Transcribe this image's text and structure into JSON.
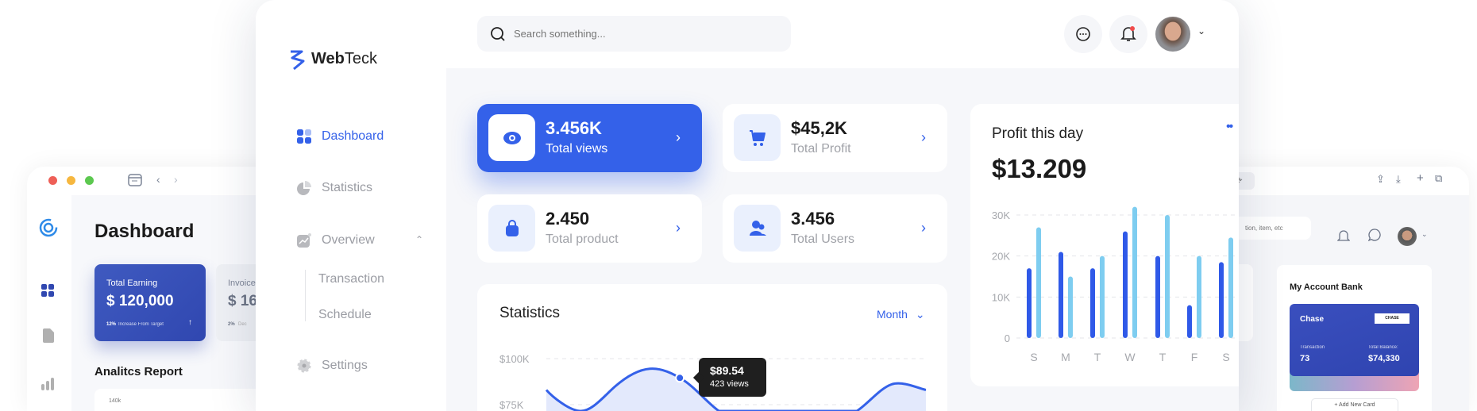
{
  "colors": {
    "accent": "#3461e9",
    "bar_dark": "#2f59e8",
    "bar_light": "#7ecdf0",
    "earning_card": "#3047b0"
  },
  "back_left": {
    "title": "Dashboard",
    "earning": {
      "label": "Total Earning",
      "value": "$ 120,000",
      "pct": "12%",
      "note": "Increase From Target"
    },
    "invoice": {
      "label": "Invoice",
      "value": "$ 16",
      "pct": "2%",
      "note": "Dec"
    },
    "report_title": "Analitcs Report",
    "axis_top": "140k"
  },
  "back_right": {
    "search_placeholder": "tion, item, etc",
    "bank": {
      "title": "My Account Bank",
      "card_name": "Chase",
      "card_logo": "CHASE",
      "transaction_label": "Transaction",
      "transaction_value": "73",
      "balance_label": "Total Balance:",
      "balance_value": "$74,330",
      "add_button": "+ Add New Card"
    }
  },
  "brand": {
    "name_bold": "Web",
    "name_light": "Teck"
  },
  "sidebar": {
    "items": [
      {
        "label": "Dashboard",
        "icon": "grid-icon",
        "active": true
      },
      {
        "label": "Statistics",
        "icon": "pie-chart-icon"
      },
      {
        "label": "Overview",
        "icon": "chart-icon",
        "expanded": true,
        "children": [
          "Transaction",
          "Schedule"
        ]
      },
      {
        "label": "Settings",
        "icon": "gear-icon"
      }
    ]
  },
  "header": {
    "search_placeholder": "Search something...",
    "notification_badge": true
  },
  "stats": [
    {
      "value": "3.456K",
      "label": "Total views",
      "icon": "eye-icon"
    },
    {
      "value": "$45,2K",
      "label": "Total Profit",
      "icon": "cart-icon"
    },
    {
      "value": "2.450",
      "label": "Total product",
      "icon": "bag-icon"
    },
    {
      "value": "3.456",
      "label": "Total Users",
      "icon": "users-icon"
    }
  ],
  "profit": {
    "title": "Profit this day",
    "value": "$13.209"
  },
  "statistics": {
    "title": "Statistics",
    "period": "Month",
    "tooltip": {
      "value": "$89.54",
      "views": "423 views"
    }
  },
  "chart_data": [
    {
      "type": "bar",
      "title": "Profit this day",
      "categories": [
        "S",
        "M",
        "T",
        "W",
        "T",
        "F",
        "S"
      ],
      "series": [
        {
          "values": [
            17000,
            21000,
            17000,
            26000,
            20000,
            8000,
            18500
          ]
        },
        {
          "values": [
            27000,
            15000,
            20000,
            32000,
            30000,
            20000,
            24500
          ]
        }
      ],
      "yticks": [
        "0",
        "10K",
        "20K",
        "30K"
      ],
      "ylim": [
        0,
        30000
      ],
      "grid": true
    },
    {
      "type": "area",
      "title": "Statistics",
      "yticks": [
        "$100K",
        "$75K"
      ],
      "ylabel_unit": "$K",
      "values": [
        83,
        62,
        85,
        94.5,
        88,
        70,
        52,
        45,
        52,
        70,
        86,
        83
      ],
      "highlight": {
        "index": 3.87,
        "value": 89.54
      },
      "grid": true
    }
  ]
}
